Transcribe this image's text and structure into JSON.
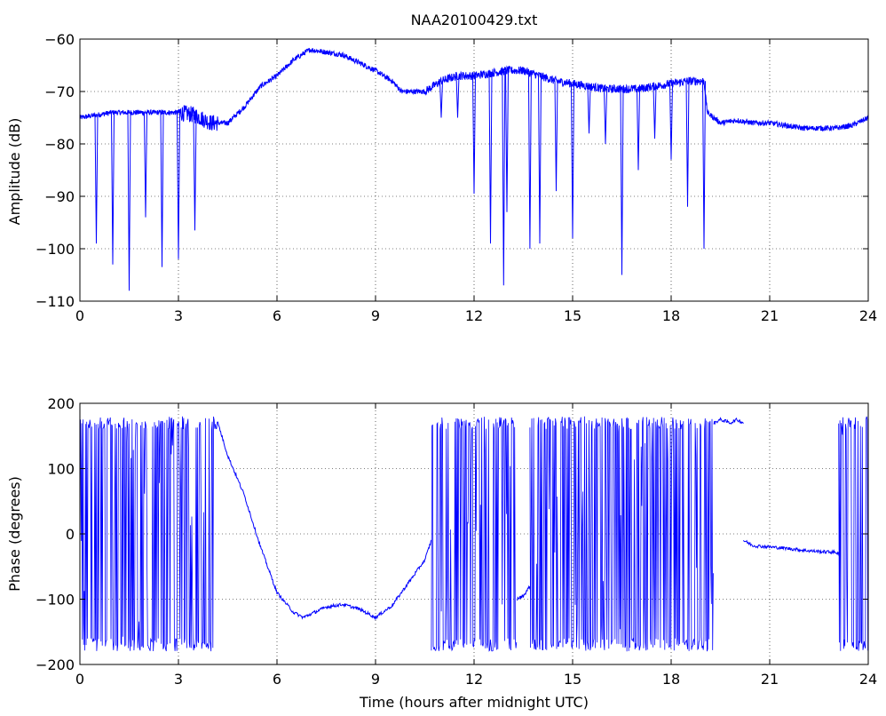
{
  "chart_data": [
    {
      "type": "line",
      "title": "NAA20100429.txt",
      "xlabel": "",
      "ylabel": "Amplitude (dB)",
      "xlim": [
        0,
        24
      ],
      "ylim": [
        -110,
        -60
      ],
      "xticks": [
        0,
        3,
        6,
        9,
        12,
        15,
        18,
        21,
        24
      ],
      "yticks": [
        -110,
        -100,
        -90,
        -80,
        -70,
        -60
      ],
      "xtick_labels": [
        "0",
        "3",
        "6",
        "9",
        "12",
        "15",
        "18",
        "21",
        "24"
      ],
      "ytick_labels": [
        "−110",
        "−100",
        "−90",
        "−80",
        "−70",
        "−60"
      ],
      "grid": true,
      "series_color": "#0000ff",
      "baseline": {
        "x": [
          0,
          0.5,
          1,
          2,
          3,
          3.5,
          4,
          4.5,
          5,
          5.5,
          6,
          6.5,
          7,
          7.5,
          8,
          8.5,
          9,
          9.5,
          9.8,
          10,
          10.5,
          11,
          11.5,
          12,
          12.5,
          13,
          13.5,
          14,
          14.5,
          15,
          15.5,
          16,
          16.5,
          17,
          17.5,
          18,
          18.5,
          19,
          19.1,
          19.5,
          20,
          20.5,
          21,
          21.5,
          22,
          22.5,
          23,
          23.5,
          24
        ],
        "y": [
          -75,
          -74.5,
          -74,
          -74,
          -74,
          -74.5,
          -76,
          -76,
          -73,
          -69,
          -67,
          -64,
          -62,
          -62.5,
          -63,
          -64.5,
          -66,
          -68,
          -70,
          -70,
          -70,
          -68,
          -67,
          -67,
          -66.5,
          -66,
          -66,
          -67,
          -68,
          -68.5,
          -69,
          -69.5,
          -69.5,
          -69.5,
          -69,
          -68.5,
          -68,
          -68,
          -74,
          -76,
          -75.5,
          -76,
          -76,
          -76.5,
          -77,
          -77,
          -77,
          -76.5,
          -75
        ]
      },
      "dips": [
        {
          "x": 0.5,
          "y": -99
        },
        {
          "x": 1.0,
          "y": -103
        },
        {
          "x": 1.5,
          "y": -108
        },
        {
          "x": 2.0,
          "y": -94
        },
        {
          "x": 2.5,
          "y": -103.5
        },
        {
          "x": 3.0,
          "y": -102
        },
        {
          "x": 3.5,
          "y": -96.5
        },
        {
          "x": 11.0,
          "y": -75
        },
        {
          "x": 11.5,
          "y": -75
        },
        {
          "x": 12.0,
          "y": -89.5
        },
        {
          "x": 12.5,
          "y": -99
        },
        {
          "x": 12.9,
          "y": -107
        },
        {
          "x": 13.0,
          "y": -93
        },
        {
          "x": 13.7,
          "y": -100
        },
        {
          "x": 14.0,
          "y": -99
        },
        {
          "x": 14.5,
          "y": -89
        },
        {
          "x": 15.0,
          "y": -98
        },
        {
          "x": 15.5,
          "y": -78
        },
        {
          "x": 16.0,
          "y": -80
        },
        {
          "x": 16.5,
          "y": -105
        },
        {
          "x": 17.0,
          "y": -85
        },
        {
          "x": 17.5,
          "y": -79
        },
        {
          "x": 18.0,
          "y": -83
        },
        {
          "x": 18.5,
          "y": -92
        },
        {
          "x": 19.0,
          "y": -100
        }
      ]
    },
    {
      "type": "line",
      "title": "",
      "xlabel": "Time (hours after midnight UTC)",
      "ylabel": "Phase (degrees)",
      "xlim": [
        0,
        24
      ],
      "ylim": [
        -200,
        200
      ],
      "xticks": [
        0,
        3,
        6,
        9,
        12,
        15,
        18,
        21,
        24
      ],
      "yticks": [
        -200,
        -100,
        0,
        100,
        200
      ],
      "xtick_labels": [
        "0",
        "3",
        "6",
        "9",
        "12",
        "15",
        "18",
        "21",
        "24"
      ],
      "ytick_labels": [
        "−200",
        "−100",
        "0",
        "100",
        "200"
      ],
      "grid": true,
      "series_color": "#0000ff",
      "noisy_segments": [
        {
          "x_start": 0,
          "x_end": 4.2,
          "y_min": -180,
          "y_max": 180
        },
        {
          "x_start": 10.7,
          "x_end": 13.3,
          "y_min": -180,
          "y_max": 180
        },
        {
          "x_start": 13.7,
          "x_end": 19.3,
          "y_min": -180,
          "y_max": 180
        },
        {
          "x_start": 23.1,
          "x_end": 24,
          "y_min": -180,
          "y_max": 180
        }
      ],
      "smooth_segments": [
        {
          "x": [
            4.2,
            4.5,
            5,
            5.5,
            6,
            6.5,
            6.8,
            7.5,
            8,
            8.5,
            9,
            9.5,
            10,
            10.5,
            10.7
          ],
          "y": [
            170,
            120,
            60,
            -20,
            -90,
            -120,
            -128,
            -112,
            -108,
            -115,
            -128,
            -110,
            -75,
            -40,
            -10
          ]
        },
        {
          "x": [
            13.3,
            13.5,
            13.7
          ],
          "y": [
            -100,
            -95,
            -80
          ]
        },
        {
          "x": [
            19.3,
            19.5,
            19.8,
            20,
            20.2
          ],
          "y": [
            170,
            175,
            170,
            175,
            170
          ]
        },
        {
          "x": [
            20.2,
            20.5,
            21,
            21.5,
            22,
            22.5,
            23,
            23.1
          ],
          "y": [
            -10,
            -18,
            -20,
            -22,
            -25,
            -27,
            -28,
            -30
          ]
        }
      ]
    }
  ]
}
